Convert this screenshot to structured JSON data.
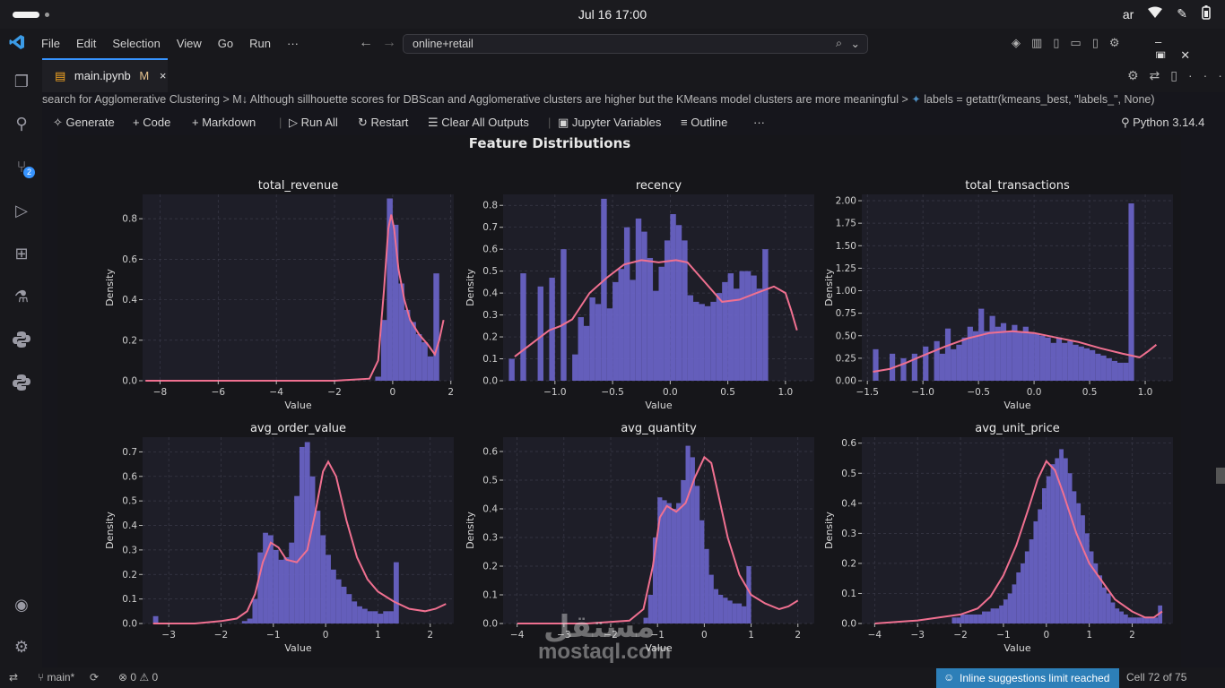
{
  "system": {
    "clock": "Jul 16  17:00",
    "language": "ar"
  },
  "menubar": {
    "items": [
      "File",
      "Edit",
      "Selection",
      "View",
      "Go",
      "Run",
      "···"
    ],
    "search_value": "online+retail"
  },
  "activity_badge": "2",
  "tab": {
    "label": "main.ipynb",
    "modified": "M",
    "close": "×"
  },
  "breadcrumb": {
    "part1": "search for Agglomerative Clustering",
    "part2": "M↓ Although sillhouette scores for DBScan and Agglomerative clusters are higher but the KMeans model clusters are more meaningful",
    "part3": "labels = getattr(kmeans_best, \"labels_\", None)"
  },
  "notebook_toolbar": {
    "generate": "Generate",
    "code": "Code",
    "markdown": "Markdown",
    "run_all": "Run All",
    "restart": "Restart",
    "clear_outputs": "Clear All Outputs",
    "variables": "Jupyter Variables",
    "outline": "Outline",
    "more": "···",
    "kernel": "Python 3.14.4"
  },
  "cell_more": "···",
  "statusbar": {
    "branch": "main*",
    "errors": "0",
    "warnings": "0",
    "suggestions": "Inline suggestions limit reached",
    "cell_position": "Cell 72 of 75"
  },
  "watermark": {
    "arabic": "مستقل",
    "latin": "mostaql.com"
  },
  "colors": {
    "bar": "#6a64c8",
    "kde": "#f07090",
    "axes_bg": "#1e1e28",
    "panel_bg": "#16161a"
  },
  "chart_data": {
    "type": "bar",
    "title": "Feature Distributions",
    "subplots": [
      {
        "title": "total_revenue",
        "xlabel": "Value",
        "ylabel": "Density",
        "xlim": [
          -8.6,
          2.1
        ],
        "ylim": [
          0,
          0.92
        ],
        "xticks": [
          -8,
          -6,
          -4,
          -2,
          0,
          2
        ],
        "xtick_labels": [
          "−8",
          "−6",
          "−4",
          "−2",
          "0",
          "2"
        ],
        "yticks": [
          0,
          0.2,
          0.4,
          0.6,
          0.8
        ],
        "ytick_labels": [
          "0.0",
          "0.2",
          "0.4",
          "0.6",
          "0.8"
        ],
        "bin_start": -0.6,
        "bin_width": 0.2,
        "values": [
          0.02,
          0.3,
          0.9,
          0.77,
          0.48,
          0.35,
          0.29,
          0.23,
          0.19,
          0.12,
          0.53
        ],
        "kde_x": [
          -8.5,
          -2.0,
          -0.8,
          -0.5,
          -0.3,
          -0.15,
          -0.05,
          0.05,
          0.2,
          0.4,
          0.6,
          0.9,
          1.2,
          1.45,
          1.6,
          1.75
        ],
        "kde_y": [
          0.0,
          0.0,
          0.01,
          0.1,
          0.45,
          0.75,
          0.82,
          0.75,
          0.55,
          0.4,
          0.3,
          0.23,
          0.18,
          0.13,
          0.2,
          0.3
        ]
      },
      {
        "title": "recency",
        "xlabel": "Value",
        "ylabel": "Density",
        "xlim": [
          -1.45,
          1.25
        ],
        "ylim": [
          0,
          0.85
        ],
        "xticks": [
          -1.0,
          -0.5,
          0.0,
          0.5,
          1.0
        ],
        "xtick_labels": [
          "−1.0",
          "−0.5",
          "0.0",
          "0.5",
          "1.0"
        ],
        "yticks": [
          0,
          0.1,
          0.2,
          0.3,
          0.4,
          0.5,
          0.6,
          0.7,
          0.8
        ],
        "ytick_labels": [
          "0.0",
          "0.1",
          "0.2",
          "0.3",
          "0.4",
          "0.5",
          "0.6",
          "0.7",
          "0.8"
        ],
        "bin_start": -1.4,
        "bin_width": 0.05,
        "values": [
          0.1,
          0.0,
          0.49,
          0.0,
          0.0,
          0.43,
          0.0,
          0.47,
          0.0,
          0.6,
          0.0,
          0.12,
          0.29,
          0.25,
          0.38,
          0.35,
          0.83,
          0.33,
          0.45,
          0.51,
          0.7,
          0.46,
          0.74,
          0.68,
          0.56,
          0.41,
          0.52,
          0.64,
          0.76,
          0.71,
          0.64,
          0.39,
          0.36,
          0.35,
          0.34,
          0.36,
          0.4,
          0.45,
          0.49,
          0.42,
          0.5,
          0.5,
          0.48,
          0.42,
          0.6
        ],
        "kde_x": [
          -1.35,
          -1.2,
          -1.05,
          -0.95,
          -0.85,
          -0.7,
          -0.55,
          -0.4,
          -0.25,
          -0.1,
          0.05,
          0.15,
          0.3,
          0.45,
          0.6,
          0.75,
          0.9,
          1.0,
          1.05,
          1.1
        ],
        "kde_y": [
          0.11,
          0.17,
          0.23,
          0.25,
          0.28,
          0.4,
          0.47,
          0.53,
          0.55,
          0.54,
          0.55,
          0.54,
          0.45,
          0.36,
          0.37,
          0.4,
          0.43,
          0.4,
          0.32,
          0.23
        ]
      },
      {
        "title": "total_transactions",
        "xlabel": "Value",
        "ylabel": "Density",
        "xlim": [
          -1.55,
          1.25
        ],
        "ylim": [
          0,
          2.07
        ],
        "xticks": [
          -1.5,
          -1.0,
          -0.5,
          0.0,
          0.5,
          1.0
        ],
        "xtick_labels": [
          "−1.5",
          "−1.0",
          "−0.5",
          "0.0",
          "0.5",
          "1.0"
        ],
        "yticks": [
          0,
          0.25,
          0.5,
          0.75,
          1.0,
          1.25,
          1.5,
          1.75,
          2.0
        ],
        "ytick_labels": [
          "0.00",
          "0.25",
          "0.50",
          "0.75",
          "1.00",
          "1.25",
          "1.50",
          "1.75",
          "2.00"
        ],
        "bin_start": -1.45,
        "bin_width": 0.05,
        "values": [
          0.35,
          0.0,
          0.0,
          0.3,
          0.0,
          0.25,
          0.0,
          0.3,
          0.0,
          0.38,
          0.0,
          0.44,
          0.3,
          0.58,
          0.35,
          0.4,
          0.48,
          0.6,
          0.55,
          0.8,
          0.55,
          0.72,
          0.6,
          0.64,
          0.55,
          0.62,
          0.54,
          0.6,
          0.54,
          0.52,
          0.5,
          0.48,
          0.42,
          0.48,
          0.42,
          0.44,
          0.4,
          0.38,
          0.36,
          0.34,
          0.3,
          0.28,
          0.25,
          0.22,
          0.2,
          0.2,
          1.97
        ],
        "kde_x": [
          -1.45,
          -1.3,
          -1.15,
          -1.0,
          -0.8,
          -0.6,
          -0.4,
          -0.2,
          0.0,
          0.2,
          0.4,
          0.6,
          0.8,
          0.95,
          1.03,
          1.1
        ],
        "kde_y": [
          0.1,
          0.13,
          0.2,
          0.28,
          0.38,
          0.47,
          0.53,
          0.55,
          0.53,
          0.48,
          0.43,
          0.36,
          0.3,
          0.26,
          0.33,
          0.4
        ]
      },
      {
        "title": "avg_order_value",
        "xlabel": "Value",
        "ylabel": "Density",
        "xlim": [
          -3.5,
          2.45
        ],
        "ylim": [
          0,
          0.76
        ],
        "xticks": [
          -3,
          -2,
          -1,
          0,
          1,
          2
        ],
        "xtick_labels": [
          "−3",
          "−2",
          "−1",
          "0",
          "1",
          "2"
        ],
        "yticks": [
          0,
          0.1,
          0.2,
          0.3,
          0.4,
          0.5,
          0.6,
          0.7
        ],
        "ytick_labels": [
          "0.0",
          "0.1",
          "0.2",
          "0.3",
          "0.4",
          "0.5",
          "0.6",
          "0.7"
        ],
        "bin_start": -3.3,
        "bin_width": 0.1,
        "values": [
          0.03,
          0,
          0,
          0,
          0,
          0,
          0,
          0,
          0,
          0,
          0,
          0,
          0,
          0,
          0,
          0,
          0,
          0.01,
          0.02,
          0.1,
          0.29,
          0.37,
          0.36,
          0.3,
          0.26,
          0.27,
          0.33,
          0.52,
          0.72,
          0.74,
          0.6,
          0.46,
          0.36,
          0.28,
          0.22,
          0.18,
          0.15,
          0.12,
          0.09,
          0.07,
          0.06,
          0.05,
          0.05,
          0.04,
          0.05,
          0.05,
          0.25
        ],
        "kde_x": [
          -3.3,
          -2.5,
          -2.0,
          -1.7,
          -1.5,
          -1.35,
          -1.2,
          -1.05,
          -0.9,
          -0.75,
          -0.55,
          -0.35,
          -0.2,
          -0.05,
          0.05,
          0.2,
          0.4,
          0.6,
          0.8,
          1.0,
          1.3,
          1.6,
          1.9,
          2.1,
          2.3
        ],
        "kde_y": [
          0.0,
          0.0,
          0.01,
          0.02,
          0.05,
          0.12,
          0.25,
          0.33,
          0.31,
          0.26,
          0.25,
          0.3,
          0.45,
          0.62,
          0.66,
          0.6,
          0.42,
          0.27,
          0.18,
          0.13,
          0.09,
          0.06,
          0.05,
          0.06,
          0.08
        ]
      },
      {
        "title": "avg_quantity",
        "xlabel": "Value",
        "ylabel": "Density",
        "xlim": [
          -4.3,
          2.35
        ],
        "ylim": [
          0,
          0.65
        ],
        "xticks": [
          -4,
          -3,
          -2,
          -1,
          0,
          1,
          2
        ],
        "xtick_labels": [
          "−4",
          "−3",
          "−2",
          "−1",
          "0",
          "1",
          "2"
        ],
        "yticks": [
          0,
          0.1,
          0.2,
          0.3,
          0.4,
          0.5,
          0.6
        ],
        "ytick_labels": [
          "0.0",
          "0.1",
          "0.2",
          "0.3",
          "0.4",
          "0.5",
          "0.6"
        ],
        "bin_start": -1.3,
        "bin_width": 0.1,
        "values": [
          0.02,
          0.1,
          0.3,
          0.44,
          0.43,
          0.42,
          0.4,
          0.42,
          0.5,
          0.62,
          0.58,
          0.48,
          0.36,
          0.26,
          0.17,
          0.12,
          0.1,
          0.09,
          0.08,
          0.07,
          0.07,
          0.06,
          0.2
        ],
        "kde_x": [
          -4.0,
          -2.5,
          -1.6,
          -1.3,
          -1.1,
          -0.95,
          -0.8,
          -0.6,
          -0.4,
          -0.2,
          0.0,
          0.15,
          0.3,
          0.5,
          0.75,
          1.0,
          1.3,
          1.6,
          1.8,
          2.0
        ],
        "kde_y": [
          0.0,
          0.0,
          0.01,
          0.05,
          0.2,
          0.37,
          0.41,
          0.39,
          0.42,
          0.51,
          0.58,
          0.56,
          0.45,
          0.3,
          0.17,
          0.1,
          0.07,
          0.05,
          0.06,
          0.08
        ]
      },
      {
        "title": "avg_unit_price",
        "xlabel": "Value",
        "ylabel": "Density",
        "xlim": [
          -4.3,
          2.95
        ],
        "ylim": [
          0,
          0.62
        ],
        "xticks": [
          -4,
          -3,
          -2,
          -1,
          0,
          1,
          2
        ],
        "xtick_labels": [
          "−4",
          "−3",
          "−2",
          "−1",
          "0",
          "1",
          "2"
        ],
        "yticks": [
          0,
          0.1,
          0.2,
          0.3,
          0.4,
          0.5,
          0.6
        ],
        "ytick_labels": [
          "0.0",
          "0.1",
          "0.2",
          "0.3",
          "0.4",
          "0.5",
          "0.6"
        ],
        "bin_start": -2.2,
        "bin_width": 0.1,
        "values": [
          0.02,
          0.02,
          0.03,
          0.03,
          0.03,
          0.03,
          0.03,
          0.04,
          0.04,
          0.05,
          0.05,
          0.06,
          0.08,
          0.1,
          0.13,
          0.17,
          0.2,
          0.24,
          0.28,
          0.34,
          0.38,
          0.45,
          0.49,
          0.53,
          0.55,
          0.58,
          0.55,
          0.5,
          0.44,
          0.4,
          0.36,
          0.3,
          0.24,
          0.2,
          0.16,
          0.12,
          0.1,
          0.07,
          0.05,
          0.04,
          0.03,
          0.02,
          0.02,
          0.02,
          0.02,
          0.02,
          0.02,
          0.02,
          0.06
        ],
        "kde_x": [
          -4.0,
          -3.0,
          -2.5,
          -2.0,
          -1.6,
          -1.3,
          -1.0,
          -0.7,
          -0.4,
          -0.2,
          0.0,
          0.2,
          0.4,
          0.7,
          1.0,
          1.3,
          1.6,
          2.0,
          2.3,
          2.5,
          2.7
        ],
        "kde_y": [
          0.0,
          0.01,
          0.02,
          0.03,
          0.05,
          0.09,
          0.16,
          0.26,
          0.39,
          0.48,
          0.54,
          0.51,
          0.43,
          0.3,
          0.2,
          0.14,
          0.08,
          0.04,
          0.02,
          0.02,
          0.04
        ]
      }
    ]
  }
}
